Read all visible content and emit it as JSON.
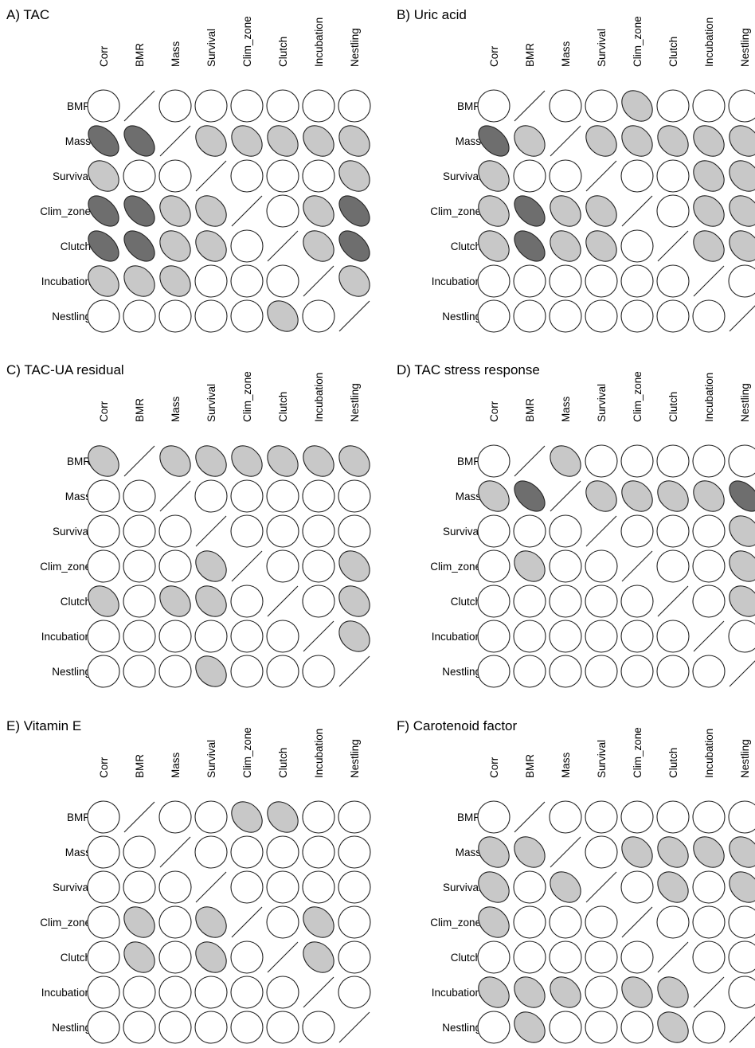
{
  "chart_data": {
    "type": "correlation-ellipse-matrix",
    "panels": [
      {
        "title": "A) TAC",
        "columns": [
          "Corr",
          "BMR",
          "Mass",
          "Survival",
          "Clim_zone",
          "Clutch",
          "Incubation",
          "Nestling"
        ],
        "rows": [
          "BMR",
          "Mass",
          "Survival",
          "Clim_zone",
          "Clutch",
          "Incubation",
          "Nestling"
        ],
        "cells": [
          [
            0,
            -1,
            0,
            0,
            0,
            0,
            0,
            0
          ],
          [
            2,
            2,
            -1,
            1,
            1,
            1,
            1,
            1
          ],
          [
            1,
            0,
            0,
            -1,
            0,
            0,
            0,
            1
          ],
          [
            2,
            2,
            1,
            1,
            -1,
            0,
            1,
            2
          ],
          [
            2,
            2,
            1,
            1,
            0,
            -1,
            1,
            2
          ],
          [
            1,
            1,
            1,
            0,
            0,
            0,
            -1,
            1
          ],
          [
            0,
            0,
            0,
            0,
            0,
            1,
            0,
            -1
          ]
        ]
      },
      {
        "title": "B) Uric acid",
        "columns": [
          "Corr",
          "BMR",
          "Mass",
          "Survival",
          "Clim_zone",
          "Clutch",
          "Incubation",
          "Nestling"
        ],
        "rows": [
          "BMR",
          "Mass",
          "Survival",
          "Clim_zone",
          "Clutch",
          "Incubation",
          "Nestling"
        ],
        "cells": [
          [
            0,
            -1,
            0,
            0,
            1,
            0,
            0,
            0
          ],
          [
            2,
            1,
            -1,
            1,
            1,
            1,
            1,
            1
          ],
          [
            1,
            0,
            0,
            -1,
            0,
            0,
            1,
            1
          ],
          [
            1,
            2,
            1,
            1,
            -1,
            0,
            1,
            1
          ],
          [
            1,
            2,
            1,
            1,
            0,
            -1,
            1,
            1
          ],
          [
            0,
            0,
            0,
            0,
            0,
            0,
            -1,
            0
          ],
          [
            0,
            0,
            0,
            0,
            0,
            0,
            0,
            -1
          ]
        ]
      },
      {
        "title": "C) TAC-UA residual",
        "columns": [
          "Corr",
          "BMR",
          "Mass",
          "Survival",
          "Clim_zone",
          "Clutch",
          "Incubation",
          "Nestling"
        ],
        "rows": [
          "BMR",
          "Mass",
          "Survival",
          "Clim_zone",
          "Clutch",
          "Incubation",
          "Nestling"
        ],
        "cells": [
          [
            1,
            -1,
            1,
            1,
            1,
            1,
            1,
            1
          ],
          [
            0,
            0,
            -1,
            0,
            0,
            0,
            0,
            0
          ],
          [
            0,
            0,
            0,
            -1,
            0,
            0,
            0,
            0
          ],
          [
            0,
            0,
            0,
            1,
            -1,
            0,
            0,
            1
          ],
          [
            1,
            0,
            1,
            1,
            0,
            -1,
            0,
            1
          ],
          [
            0,
            0,
            0,
            0,
            0,
            0,
            -1,
            1
          ],
          [
            0,
            0,
            0,
            1,
            0,
            0,
            0,
            -1
          ]
        ]
      },
      {
        "title": "D) TAC stress response",
        "columns": [
          "Corr",
          "BMR",
          "Mass",
          "Survival",
          "Clim_zone",
          "Clutch",
          "Incubation",
          "Nestling"
        ],
        "rows": [
          "BMR",
          "Mass",
          "Survival",
          "Clim_zone",
          "Clutch",
          "Incubation",
          "Nestling"
        ],
        "cells": [
          [
            0,
            -1,
            1,
            0,
            0,
            0,
            0,
            0
          ],
          [
            1,
            2,
            -1,
            1,
            1,
            1,
            1,
            2
          ],
          [
            0,
            0,
            0,
            -1,
            0,
            0,
            0,
            1
          ],
          [
            0,
            1,
            0,
            0,
            -1,
            0,
            0,
            1
          ],
          [
            0,
            0,
            0,
            0,
            0,
            -1,
            0,
            1
          ],
          [
            0,
            0,
            0,
            0,
            0,
            0,
            -1,
            0
          ],
          [
            0,
            0,
            0,
            0,
            0,
            0,
            0,
            -1
          ]
        ]
      },
      {
        "title": "E) Vitamin E",
        "columns": [
          "Corr",
          "BMR",
          "Mass",
          "Survival",
          "Clim_zone",
          "Clutch",
          "Incubation",
          "Nestling"
        ],
        "rows": [
          "BMR",
          "Mass",
          "Survival",
          "Clim_zone",
          "Clutch",
          "Incubation",
          "Nestling"
        ],
        "cells": [
          [
            0,
            -1,
            0,
            0,
            1,
            1,
            0,
            0
          ],
          [
            0,
            0,
            -1,
            0,
            0,
            0,
            0,
            0
          ],
          [
            0,
            0,
            0,
            -1,
            0,
            0,
            0,
            0
          ],
          [
            0,
            1,
            0,
            1,
            -1,
            0,
            1,
            0
          ],
          [
            0,
            1,
            0,
            1,
            0,
            -1,
            1,
            0
          ],
          [
            0,
            0,
            0,
            0,
            0,
            0,
            -1,
            0
          ],
          [
            0,
            0,
            0,
            0,
            0,
            0,
            0,
            -1
          ]
        ]
      },
      {
        "title": "F) Carotenoid factor",
        "columns": [
          "Corr",
          "BMR",
          "Mass",
          "Survival",
          "Clim_zone",
          "Clutch",
          "Incubation",
          "Nestling"
        ],
        "rows": [
          "BMR",
          "Mass",
          "Survival",
          "Clim_zone",
          "Clutch",
          "Incubation",
          "Nestling"
        ],
        "cells": [
          [
            0,
            -1,
            0,
            0,
            0,
            0,
            0,
            0
          ],
          [
            1,
            1,
            -1,
            0,
            1,
            1,
            1,
            1
          ],
          [
            1,
            0,
            1,
            -1,
            0,
            1,
            0,
            1
          ],
          [
            1,
            0,
            0,
            0,
            -1,
            0,
            0,
            0
          ],
          [
            0,
            0,
            0,
            0,
            0,
            -1,
            0,
            0
          ],
          [
            1,
            1,
            1,
            0,
            1,
            1,
            -1,
            0
          ],
          [
            0,
            1,
            0,
            0,
            0,
            1,
            0,
            -1
          ]
        ]
      }
    ],
    "encoding": {
      "values": "0 = circle (no correlation), 1 = light-grey ellipse (moderate positive), 2 = dark-grey ellipse (strong positive), -1 = diagonal line (self)",
      "colors": {
        "none": "#ffffff",
        "moderate": "#c8c8c8",
        "strong": "#6e6e6e",
        "stroke": "#222222"
      }
    }
  }
}
